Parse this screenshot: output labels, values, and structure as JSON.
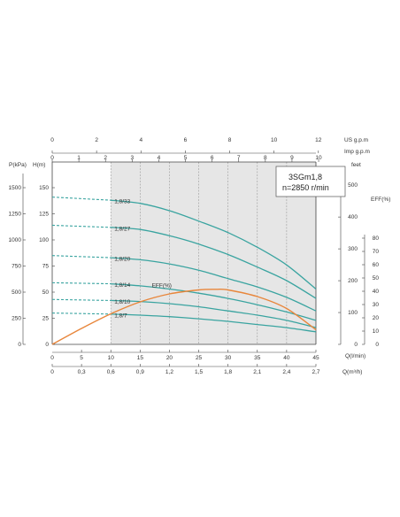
{
  "chart_data": {
    "type": "line",
    "title": "",
    "model": "3SGm1,8",
    "speed": "n=2850 r/min",
    "colors": {
      "head": "#3aa4a0",
      "efficiency": "#e8863b",
      "shade": "#e6e6e6",
      "grid": "#9a9a9a"
    },
    "axes": {
      "flow_lmin": {
        "label": "Q(l/min)",
        "range": [
          0,
          45
        ],
        "ticks": [
          "5",
          "10",
          "15",
          "20",
          "25",
          "30",
          "35",
          "40",
          "45"
        ]
      },
      "flow_m3h": {
        "label": "Q(m³/h)",
        "range": [
          0,
          2.7
        ],
        "ticks": [
          "0",
          "0,3",
          "0,6",
          "0,9",
          "1,2",
          "1,5",
          "1,8",
          "2,1",
          "2,4",
          "2,7"
        ]
      },
      "us_gpm": {
        "label": "US g.p.m",
        "range": [
          0,
          12
        ],
        "ticks": [
          "0",
          "2",
          "4",
          "6",
          "8",
          "10",
          "12"
        ]
      },
      "imp_gpm": {
        "label": "Imp g.p.m",
        "range": [
          0,
          10
        ],
        "ticks": [
          "0",
          "1",
          "2",
          "3",
          "4",
          "5",
          "6",
          "7",
          "8",
          "9",
          "10"
        ]
      },
      "head_m": {
        "label": "H(m)",
        "range": [
          0,
          150
        ],
        "ticks": [
          "0",
          "25",
          "50",
          "75",
          "100",
          "125",
          "150"
        ]
      },
      "pressure_kpa": {
        "label": "P(kPa)",
        "range": [
          0,
          1500
        ],
        "ticks": [
          "0",
          "250",
          "500",
          "750",
          "1000",
          "1250",
          "1500"
        ]
      },
      "head_feet": {
        "label": "feet",
        "range": [
          0,
          500
        ],
        "ticks": [
          "0",
          "100",
          "200",
          "300",
          "400",
          "500"
        ]
      },
      "efficiency": {
        "label": "EFF(%)",
        "range": [
          0,
          80
        ],
        "ticks": [
          "0",
          "10",
          "20",
          "30",
          "40",
          "50",
          "60",
          "70",
          "80"
        ]
      }
    },
    "operating_range_lmin": [
      10,
      45
    ],
    "series": [
      {
        "name": "1,8/33",
        "x": [
          0,
          10,
          15,
          20,
          25,
          30,
          35,
          40,
          45
        ],
        "y": [
          141,
          138,
          135,
          128,
          118,
          107,
          93,
          76,
          53
        ]
      },
      {
        "name": "1,8/27",
        "x": [
          0,
          10,
          15,
          20,
          25,
          30,
          35,
          40,
          45
        ],
        "y": [
          114,
          112,
          110,
          104,
          96,
          86,
          74,
          61,
          44
        ]
      },
      {
        "name": "1,8/20",
        "x": [
          0,
          10,
          15,
          20,
          25,
          30,
          35,
          40,
          45
        ],
        "y": [
          85,
          83,
          81,
          77,
          71,
          63,
          55,
          45,
          32
        ]
      },
      {
        "name": "1,8/14",
        "x": [
          0,
          10,
          15,
          20,
          25,
          30,
          35,
          40,
          45
        ],
        "y": [
          59,
          58,
          56,
          53,
          49,
          44,
          38,
          31,
          23
        ]
      },
      {
        "name": "1,8/10",
        "x": [
          0,
          10,
          15,
          20,
          25,
          30,
          35,
          40,
          45
        ],
        "y": [
          43,
          42,
          41,
          39,
          36,
          32,
          28,
          23,
          16
        ]
      },
      {
        "name": "1,8/7",
        "x": [
          0,
          10,
          15,
          20,
          25,
          30,
          35,
          40,
          45
        ],
        "y": [
          30,
          29,
          28,
          26.5,
          24.5,
          22,
          19,
          16,
          12
        ]
      }
    ],
    "efficiency_curve": {
      "name": "EFF(%)",
      "x": [
        0,
        5,
        10,
        15,
        20,
        25,
        28,
        30,
        35,
        40,
        45
      ],
      "y": [
        0,
        12,
        23,
        32,
        38,
        41,
        41.5,
        41,
        36,
        27,
        11
      ]
    }
  }
}
